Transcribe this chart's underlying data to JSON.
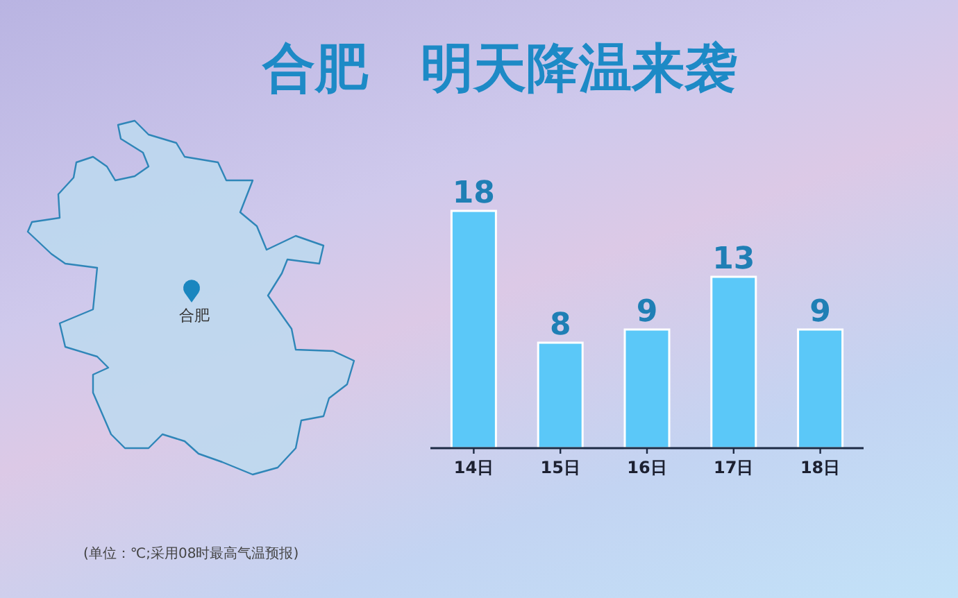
{
  "chart_data": {
    "type": "bar",
    "title": "合肥　明天降温来袭",
    "categories": [
      "14日",
      "15日",
      "16日",
      "17日",
      "18日"
    ],
    "values": [
      18,
      8,
      9,
      13,
      9
    ],
    "color": "#5bc8f8",
    "data_labels": true,
    "annotations": [
      "合肥",
      "(单位：℃;采用08时最高气温预报)"
    ]
  }
}
